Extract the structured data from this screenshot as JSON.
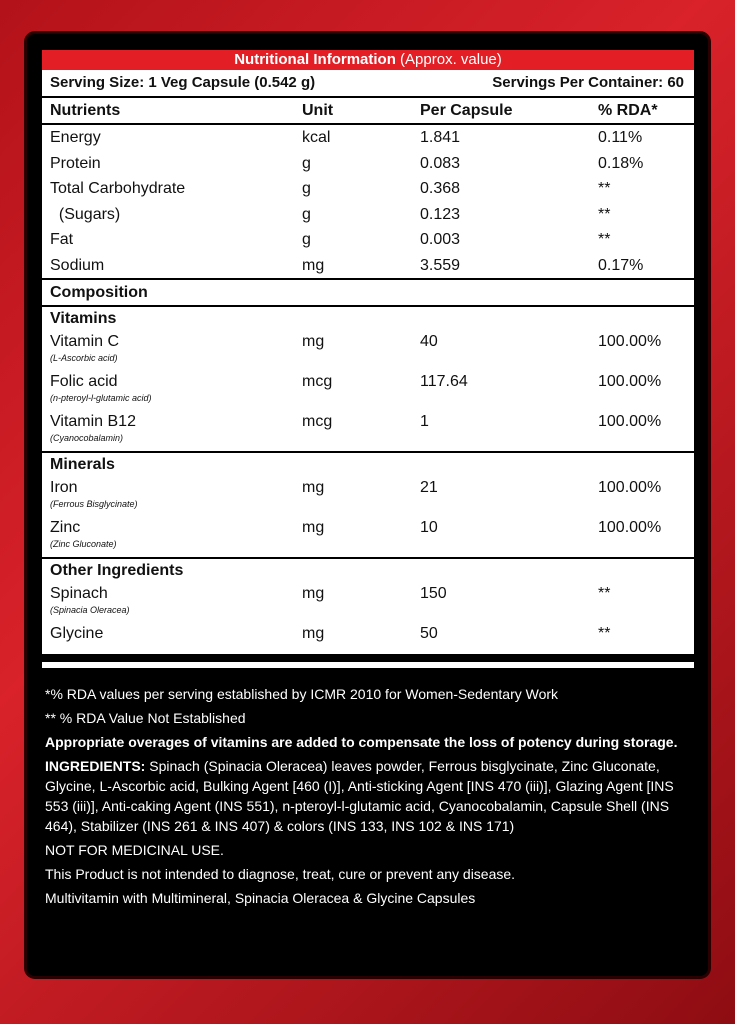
{
  "header": {
    "title": "Nutritional Information",
    "note": "(Approx. value)"
  },
  "serving": {
    "size": "Serving Size: 1 Veg Capsule (0.542 g)",
    "per_container": "Servings Per Container: 60"
  },
  "columns": [
    "Nutrients",
    "Unit",
    "Per Capsule",
    "% RDA*"
  ],
  "nutrients": [
    [
      "Energy",
      "kcal",
      "1.841",
      "0.11%"
    ],
    [
      "Protein",
      "g",
      "0.083",
      "0.18%"
    ],
    [
      "Total Carbohydrate",
      "g",
      "0.368",
      "**"
    ],
    [
      "  (Sugars)",
      "g",
      "0.123",
      "**"
    ],
    [
      "Fat",
      "g",
      "0.003",
      "**"
    ],
    [
      "Sodium",
      "mg",
      "3.559",
      "0.17%"
    ]
  ],
  "composition": {
    "title": "Composition",
    "groups": [
      {
        "title": "Vitamins",
        "rows": [
          {
            "name": "Vitamin C",
            "sub": "(L-Ascorbic acid)",
            "unit": "mg",
            "amount": "40",
            "rda": "100.00%"
          },
          {
            "name": "Folic acid",
            "sub": "(n-pteroyl-l-glutamic acid)",
            "unit": "mcg",
            "amount": "117.64",
            "rda": "100.00%"
          },
          {
            "name": "Vitamin B12",
            "sub": "(Cyanocobalamin)",
            "unit": "mcg",
            "amount": "1",
            "rda": "100.00%"
          }
        ]
      },
      {
        "title": "Minerals",
        "rows": [
          {
            "name": "Iron",
            "sub": "(Ferrous Bisglycinate)",
            "unit": "mg",
            "amount": "21",
            "rda": "100.00%"
          },
          {
            "name": "Zinc",
            "sub": "(Zinc Gluconate)",
            "unit": "mg",
            "amount": "10",
            "rda": "100.00%"
          }
        ]
      },
      {
        "title": "Other Ingredients",
        "rows": [
          {
            "name": "Spinach",
            "sub": "(Spinacia Oleracea)",
            "unit": "mg",
            "amount": "150",
            "rda": "**"
          },
          {
            "name": "Glycine",
            "unit": "mg",
            "amount": "50",
            "rda": "**"
          }
        ]
      }
    ]
  },
  "footer": {
    "notes": [
      "*% RDA values per serving established by ICMR 2010 for Women-Sedentary Work",
      "** % RDA Value Not Established"
    ],
    "overages": "Appropriate overages of vitamins are added to compensate the loss of potency during storage.",
    "ingredients_label": "INGREDIENTS:",
    "ingredients": "Spinach (Spinacia Oleracea) leaves powder, Ferrous bisglycinate, Zinc Gluconate, Glycine, L-Ascorbic acid, Bulking Agent [460 (I)], Anti-sticking Agent [INS 470 (iii)], Glazing Agent [INS 553 (iii)], Anti-caking Agent (INS 551), n-pteroyl-l-glutamic acid, Cyanocobalamin, Capsule Shell (INS 464), Stabilizer (INS 261 & INS 407) & colors (INS 133, INS 102 & INS 171)",
    "lines": [
      "NOT FOR MEDICINAL USE.",
      "This Product is not intended to diagnose, treat, cure or prevent any disease.",
      "Multivitamin with Multimineral, Spinacia Oleracea & Glycine Capsules"
    ]
  }
}
